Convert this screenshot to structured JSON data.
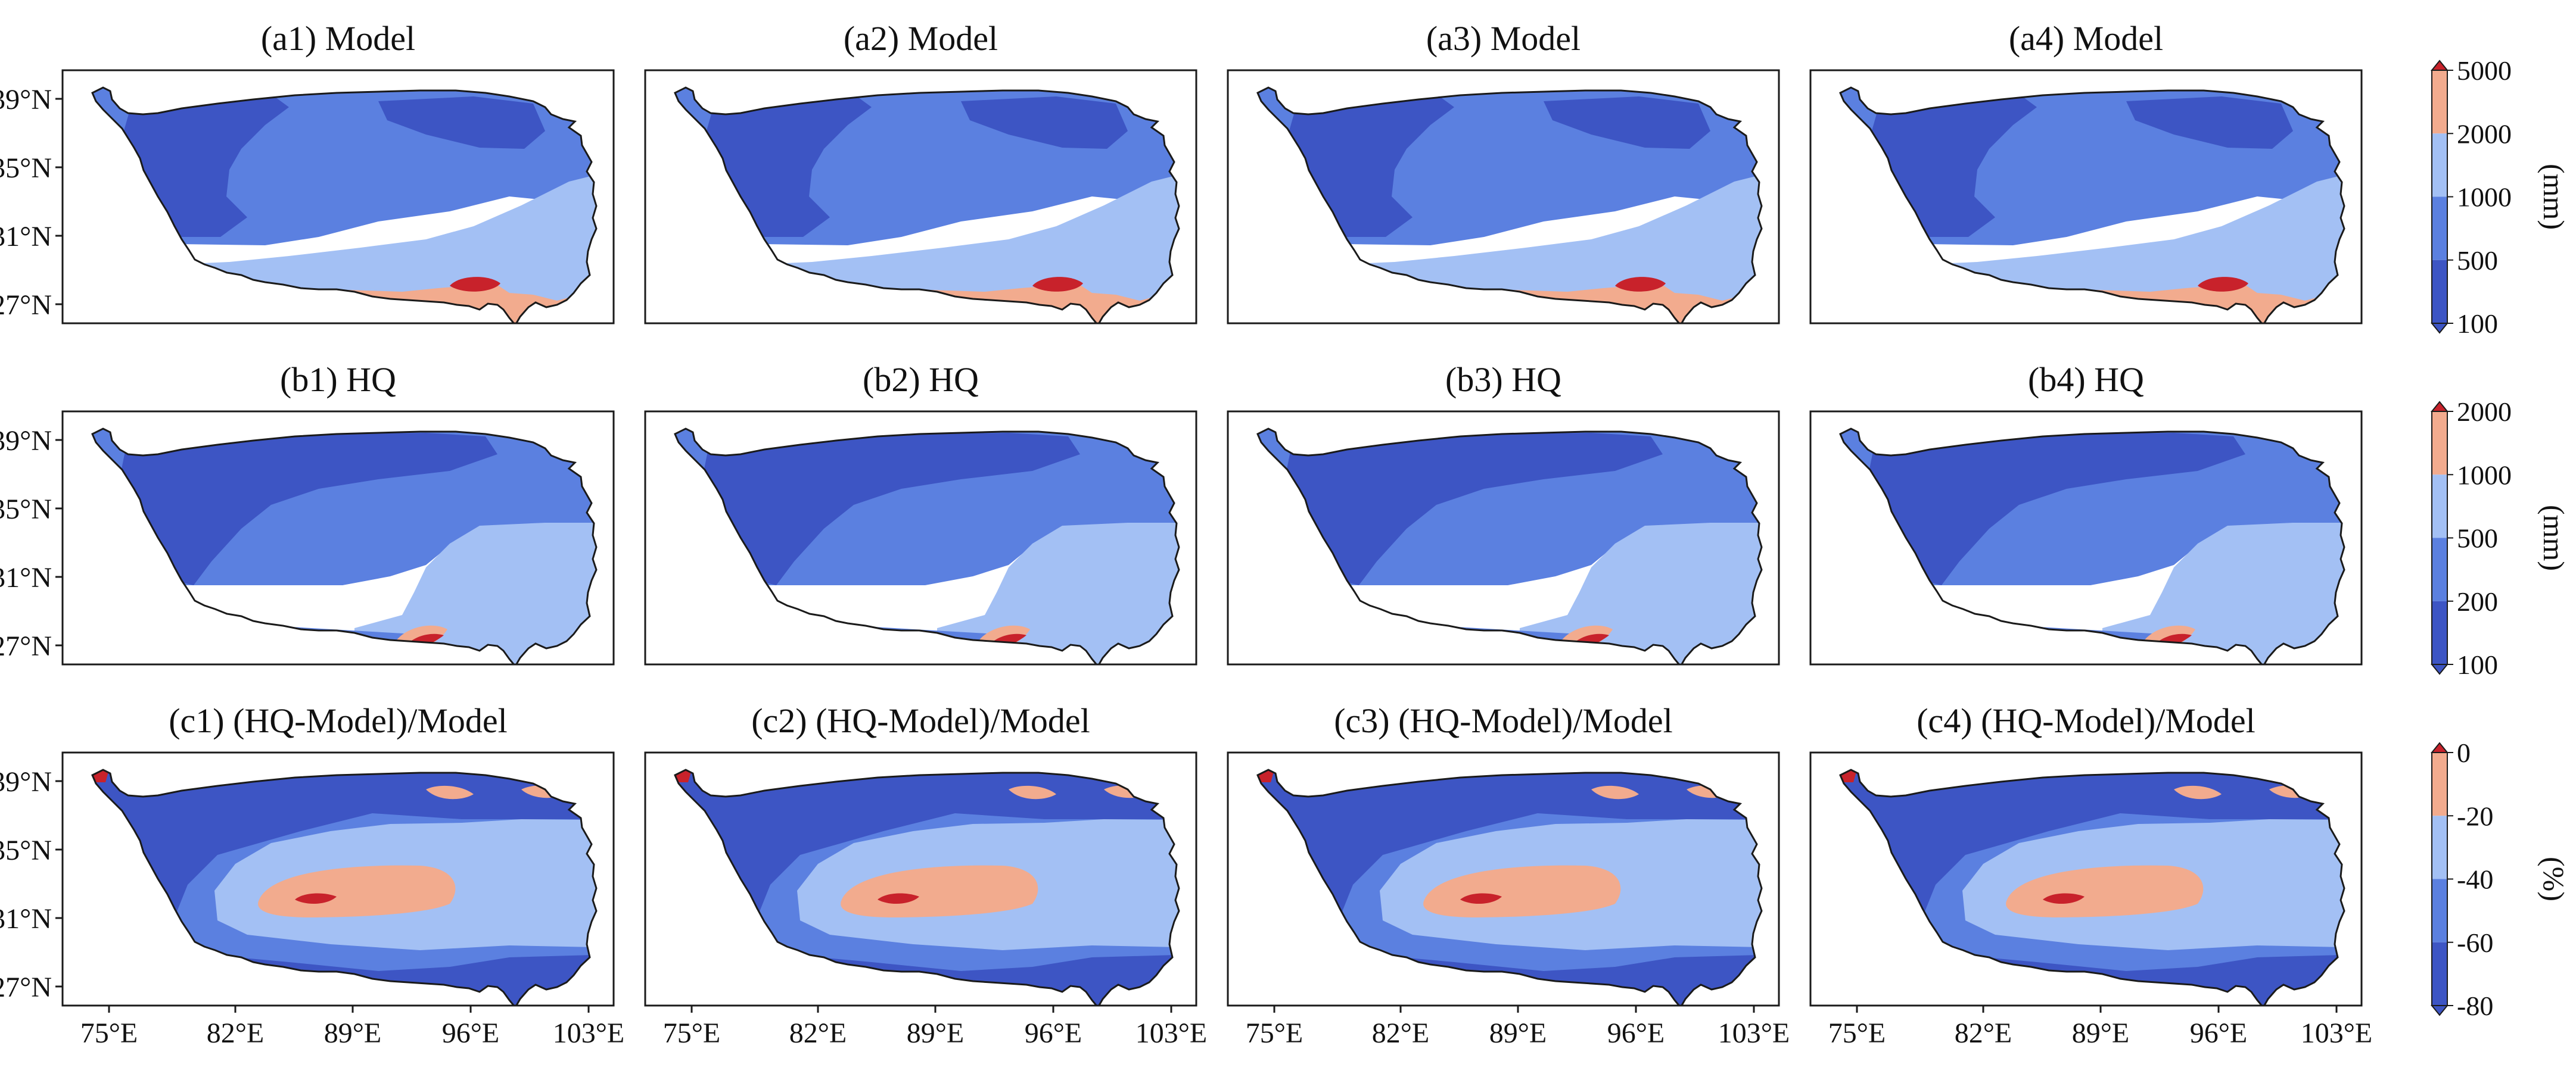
{
  "panels": [
    {
      "title": "(a1) Model",
      "row": 0,
      "col": 0
    },
    {
      "title": "(a2) Model",
      "row": 0,
      "col": 1
    },
    {
      "title": "(a3) Model",
      "row": 0,
      "col": 2
    },
    {
      "title": "(a4) Model",
      "row": 0,
      "col": 3
    },
    {
      "title": "(b1) HQ",
      "row": 1,
      "col": 0
    },
    {
      "title": "(b2) HQ",
      "row": 1,
      "col": 1
    },
    {
      "title": "(b3) HQ",
      "row": 1,
      "col": 2
    },
    {
      "title": "(b4) HQ",
      "row": 1,
      "col": 3
    },
    {
      "title": "(c1) (HQ-Model)/Model",
      "row": 2,
      "col": 0
    },
    {
      "title": "(c2) (HQ-Model)/Model",
      "row": 2,
      "col": 1
    },
    {
      "title": "(c3) (HQ-Model)/Model",
      "row": 2,
      "col": 2
    },
    {
      "title": "(c4) (HQ-Model)/Model",
      "row": 2,
      "col": 3
    }
  ],
  "lat_ticks": [
    "39°N",
    "35°N",
    "31°N",
    "27°N"
  ],
  "lon_ticks": [
    "75°E",
    "82°E",
    "89°E",
    "96°E",
    "103°E"
  ],
  "colorbars": [
    {
      "unit": "(mm)",
      "ticks": [
        "5000",
        "2000",
        "1000",
        "500",
        "100"
      ]
    },
    {
      "unit": "(mm)",
      "ticks": [
        "2000",
        "1000",
        "500",
        "200",
        "100"
      ]
    },
    {
      "unit": "(%)",
      "ticks": [
        "0",
        "-20",
        "-40",
        "-60",
        "-80"
      ]
    }
  ],
  "colors": {
    "c1": "#3d55c4",
    "c2": "#5b80e0",
    "c3": "#a3c0f4",
    "c4": "#f2ab8e",
    "c5": "#c8222b",
    "frame": "#1a1a1a"
  }
}
